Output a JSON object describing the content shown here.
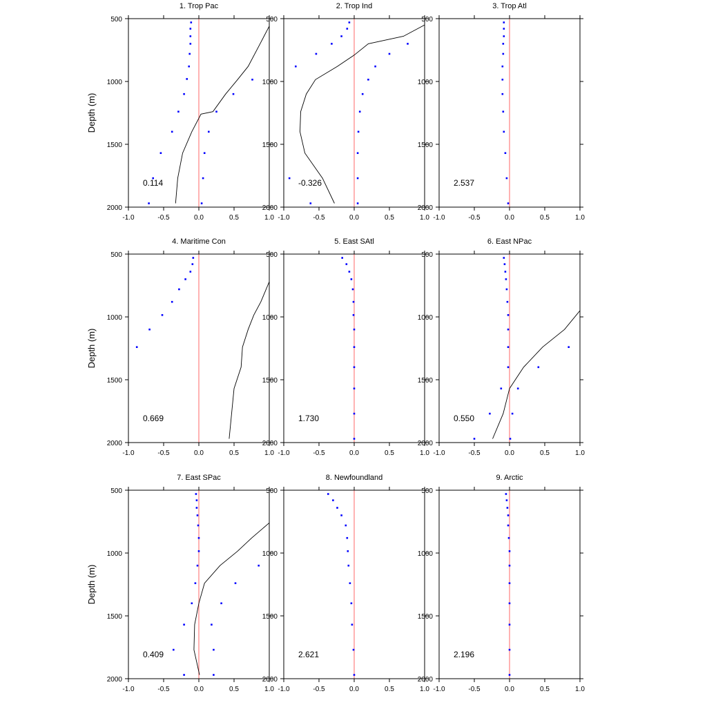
{
  "figure": {
    "ylabel": "Depth (m)",
    "xticks": [
      "-1.0",
      "-0.5",
      "0.0",
      "0.5",
      "1.0"
    ],
    "yticks": [
      "500",
      "1000",
      "1500",
      "2000"
    ],
    "colors": {
      "points": "#0000ff",
      "zero_line": "#ff8080",
      "profile": "#000000",
      "axes": "#000000"
    }
  },
  "chart_data": [
    {
      "type": "scatter",
      "title": "1. Trop Pac",
      "stat_label": "0.114",
      "ylabel": "Depth (m)",
      "xlim": [
        -1.0,
        1.0
      ],
      "ylim": [
        500,
        2000
      ],
      "y_inverted": true,
      "points": [
        [
          -0.11,
          530
        ],
        [
          -0.12,
          580
        ],
        [
          -0.12,
          640
        ],
        [
          -0.12,
          700
        ],
        [
          -0.13,
          780
        ],
        [
          -0.14,
          880
        ],
        [
          -0.17,
          980
        ],
        [
          -0.21,
          1100
        ],
        [
          -0.29,
          1240
        ],
        [
          -0.38,
          1400
        ],
        [
          -0.54,
          1570
        ],
        [
          -0.65,
          1770
        ],
        [
          -0.71,
          1970
        ],
        [
          0.76,
          985
        ],
        [
          0.49,
          1100
        ],
        [
          0.25,
          1240
        ],
        [
          0.14,
          1400
        ],
        [
          0.08,
          1570
        ],
        [
          0.06,
          1770
        ],
        [
          0.04,
          1970
        ]
      ],
      "profile": [
        [
          1.0,
          560
        ],
        [
          0.87,
          700
        ],
        [
          0.7,
          880
        ],
        [
          0.55,
          985
        ],
        [
          0.38,
          1100
        ],
        [
          0.2,
          1240
        ],
        [
          0.03,
          1260
        ],
        [
          -0.1,
          1400
        ],
        [
          -0.23,
          1570
        ],
        [
          -0.3,
          1770
        ],
        [
          -0.33,
          1970
        ]
      ]
    },
    {
      "type": "scatter",
      "title": "2. Trop Ind",
      "stat_label": "-0.326",
      "ylabel": "",
      "xlim": [
        -1.0,
        1.0
      ],
      "ylim": [
        500,
        2000
      ],
      "y_inverted": true,
      "points": [
        [
          -0.07,
          530
        ],
        [
          -0.1,
          580
        ],
        [
          -0.18,
          640
        ],
        [
          -0.32,
          700
        ],
        [
          -0.54,
          780
        ],
        [
          -0.83,
          880
        ],
        [
          0.76,
          700
        ],
        [
          0.5,
          780
        ],
        [
          0.3,
          880
        ],
        [
          0.2,
          985
        ],
        [
          0.12,
          1100
        ],
        [
          0.08,
          1240
        ],
        [
          0.06,
          1400
        ],
        [
          0.05,
          1570
        ],
        [
          0.05,
          1770
        ],
        [
          0.05,
          1970
        ],
        [
          -0.92,
          1770
        ],
        [
          -0.62,
          1970
        ]
      ],
      "profile": [
        [
          1.0,
          550
        ],
        [
          0.7,
          640
        ],
        [
          0.2,
          700
        ],
        [
          0.0,
          790
        ],
        [
          -0.24,
          880
        ],
        [
          -0.55,
          985
        ],
        [
          -0.68,
          1100
        ],
        [
          -0.76,
          1240
        ],
        [
          -0.77,
          1400
        ],
        [
          -0.7,
          1570
        ],
        [
          -0.45,
          1770
        ],
        [
          -0.28,
          1970
        ]
      ]
    },
    {
      "type": "scatter",
      "title": "3. Trop Atl",
      "stat_label": "2.537",
      "ylabel": "",
      "xlim": [
        -1.0,
        1.0
      ],
      "ylim": [
        500,
        2000
      ],
      "y_inverted": true,
      "points": [
        [
          -0.08,
          530
        ],
        [
          -0.08,
          580
        ],
        [
          -0.08,
          640
        ],
        [
          -0.09,
          700
        ],
        [
          -0.09,
          780
        ],
        [
          -0.1,
          880
        ],
        [
          -0.1,
          985
        ],
        [
          -0.1,
          1100
        ],
        [
          -0.09,
          1240
        ],
        [
          -0.08,
          1400
        ],
        [
          -0.06,
          1570
        ],
        [
          -0.04,
          1770
        ],
        [
          -0.02,
          1970
        ]
      ],
      "profile": []
    },
    {
      "type": "scatter",
      "title": "4. Maritime Con",
      "stat_label": "0.669",
      "ylabel": "Depth (m)",
      "xlim": [
        -1.0,
        1.0
      ],
      "ylim": [
        500,
        2000
      ],
      "y_inverted": true,
      "points": [
        [
          -0.08,
          530
        ],
        [
          -0.09,
          580
        ],
        [
          -0.12,
          640
        ],
        [
          -0.19,
          700
        ],
        [
          -0.28,
          780
        ],
        [
          -0.38,
          880
        ],
        [
          -0.52,
          985
        ],
        [
          -0.7,
          1100
        ],
        [
          -0.88,
          1240
        ]
      ],
      "profile": [
        [
          1.0,
          720
        ],
        [
          0.88,
          880
        ],
        [
          0.78,
          985
        ],
        [
          0.7,
          1100
        ],
        [
          0.62,
          1240
        ],
        [
          0.6,
          1400
        ],
        [
          0.5,
          1570
        ],
        [
          0.43,
          1970
        ]
      ]
    },
    {
      "type": "scatter",
      "title": "5. East SAtl",
      "stat_label": "1.730",
      "ylabel": "",
      "xlim": [
        -1.0,
        1.0
      ],
      "ylim": [
        500,
        2000
      ],
      "y_inverted": true,
      "points": [
        [
          -0.17,
          530
        ],
        [
          -0.11,
          580
        ],
        [
          -0.07,
          640
        ],
        [
          -0.04,
          700
        ],
        [
          -0.02,
          780
        ],
        [
          -0.01,
          880
        ],
        [
          -0.01,
          985
        ],
        [
          0.0,
          1100
        ],
        [
          0.0,
          1240
        ],
        [
          0.0,
          1400
        ],
        [
          0.0,
          1570
        ],
        [
          0.0,
          1770
        ],
        [
          0.0,
          1970
        ]
      ],
      "profile": []
    },
    {
      "type": "scatter",
      "title": "6. East NPac",
      "stat_label": "0.550",
      "ylabel": "",
      "xlim": [
        -1.0,
        1.0
      ],
      "ylim": [
        500,
        2000
      ],
      "y_inverted": true,
      "points": [
        [
          -0.08,
          530
        ],
        [
          -0.07,
          580
        ],
        [
          -0.06,
          640
        ],
        [
          -0.05,
          700
        ],
        [
          -0.04,
          780
        ],
        [
          -0.03,
          880
        ],
        [
          -0.02,
          985
        ],
        [
          -0.02,
          1100
        ],
        [
          -0.02,
          1240
        ],
        [
          -0.02,
          1400
        ],
        [
          -0.12,
          1570
        ],
        [
          -0.28,
          1770
        ],
        [
          -0.5,
          1970
        ],
        [
          0.84,
          1240
        ],
        [
          0.41,
          1400
        ],
        [
          0.12,
          1570
        ],
        [
          0.04,
          1770
        ],
        [
          0.01,
          1970
        ]
      ],
      "profile": [
        [
          1.0,
          950
        ],
        [
          0.78,
          1100
        ],
        [
          0.47,
          1240
        ],
        [
          0.2,
          1400
        ],
        [
          0.0,
          1570
        ],
        [
          -0.09,
          1770
        ],
        [
          -0.24,
          1970
        ]
      ]
    },
    {
      "type": "scatter",
      "title": "7. East SPac",
      "stat_label": "0.409",
      "ylabel": "Depth (m)",
      "xlim": [
        -1.0,
        1.0
      ],
      "ylim": [
        500,
        2000
      ],
      "y_inverted": true,
      "points": [
        [
          -0.04,
          530
        ],
        [
          -0.03,
          580
        ],
        [
          -0.03,
          640
        ],
        [
          -0.02,
          700
        ],
        [
          -0.01,
          780
        ],
        [
          0.0,
          880
        ],
        [
          0.0,
          985
        ],
        [
          -0.02,
          1100
        ],
        [
          -0.05,
          1240
        ],
        [
          -0.1,
          1400
        ],
        [
          -0.21,
          1570
        ],
        [
          -0.36,
          1770
        ],
        [
          -0.21,
          1970
        ],
        [
          0.85,
          1100
        ],
        [
          0.52,
          1240
        ],
        [
          0.32,
          1400
        ],
        [
          0.18,
          1570
        ],
        [
          0.21,
          1770
        ],
        [
          0.21,
          1970
        ]
      ],
      "profile": [
        [
          1.0,
          760
        ],
        [
          0.75,
          880
        ],
        [
          0.55,
          985
        ],
        [
          0.3,
          1100
        ],
        [
          0.08,
          1240
        ],
        [
          0.0,
          1400
        ],
        [
          -0.06,
          1570
        ],
        [
          -0.07,
          1770
        ],
        [
          0.01,
          1970
        ]
      ]
    },
    {
      "type": "scatter",
      "title": "8. Newfoundland",
      "stat_label": "2.621",
      "ylabel": "",
      "xlim": [
        -1.0,
        1.0
      ],
      "ylim": [
        500,
        2000
      ],
      "y_inverted": true,
      "points": [
        [
          -0.37,
          530
        ],
        [
          -0.3,
          580
        ],
        [
          -0.24,
          640
        ],
        [
          -0.18,
          700
        ],
        [
          -0.12,
          780
        ],
        [
          -0.1,
          880
        ],
        [
          -0.09,
          985
        ],
        [
          -0.08,
          1100
        ],
        [
          -0.06,
          1240
        ],
        [
          -0.04,
          1400
        ],
        [
          -0.03,
          1570
        ],
        [
          -0.01,
          1770
        ],
        [
          0.0,
          1970
        ]
      ],
      "profile": []
    },
    {
      "type": "scatter",
      "title": "9. Arctic",
      "stat_label": "2.196",
      "ylabel": "",
      "xlim": [
        -1.0,
        1.0
      ],
      "ylim": [
        500,
        2000
      ],
      "y_inverted": true,
      "points": [
        [
          -0.05,
          530
        ],
        [
          -0.04,
          580
        ],
        [
          -0.03,
          640
        ],
        [
          -0.02,
          700
        ],
        [
          -0.02,
          780
        ],
        [
          -0.01,
          880
        ],
        [
          0.0,
          985
        ],
        [
          0.0,
          1100
        ],
        [
          0.0,
          1240
        ],
        [
          0.0,
          1400
        ],
        [
          0.0,
          1570
        ],
        [
          0.0,
          1770
        ],
        [
          0.0,
          1970
        ]
      ],
      "profile": []
    }
  ]
}
